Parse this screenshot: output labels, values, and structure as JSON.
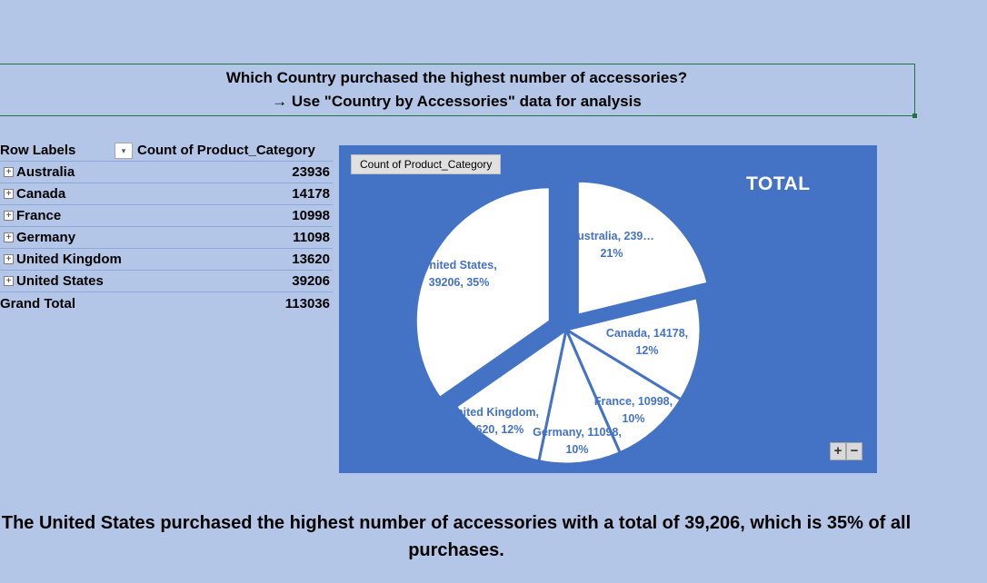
{
  "question": {
    "line1": "Which Country purchased the highest number of accessories?",
    "line2": "→ Use \"Country by Accessories\" data for analysis"
  },
  "pivot": {
    "header_labels": "Row Labels",
    "header_values": "Count of Product_Category",
    "rows": [
      {
        "label": "Australia",
        "value": "23936"
      },
      {
        "label": "Canada",
        "value": "14178"
      },
      {
        "label": "France",
        "value": "10998"
      },
      {
        "label": "Germany",
        "value": "11098"
      },
      {
        "label": "United Kingdom",
        "value": "13620"
      },
      {
        "label": "United States",
        "value": "39206"
      }
    ],
    "total_label": "Grand Total",
    "total_value": "113036",
    "expand_glyph": "+",
    "dropdown_glyph": "▾"
  },
  "chart": {
    "field_button": "Count of Product_Category",
    "title": "TOTAL",
    "zoom_in": "+",
    "zoom_out": "−",
    "colors": {
      "background": "#4472c4",
      "slice": "#ffffff",
      "label": "#4472c4"
    }
  },
  "chart_data": {
    "type": "pie",
    "title": "TOTAL",
    "categories": [
      "Australia",
      "Canada",
      "France",
      "Germany",
      "United Kingdom",
      "United States"
    ],
    "values": [
      23936,
      14178,
      10998,
      11098,
      13620,
      39206
    ],
    "data_labels": [
      [
        "Australia, 239…",
        "21%"
      ],
      [
        "Canada, 14178,",
        "12%"
      ],
      [
        "France, 10998,",
        "10%"
      ],
      [
        "Germany, 11098,",
        "10%"
      ],
      [
        "United Kingdom,",
        "13620, 12%"
      ],
      [
        "United States,",
        "39206, 35%"
      ]
    ],
    "exploded": [
      "Australia",
      "United States"
    ],
    "legend": "none"
  },
  "conclusion": {
    "line1": "The United States purchased the highest number of accessories with a total of 39,206, which is 35% of all",
    "line2": "purchases."
  }
}
